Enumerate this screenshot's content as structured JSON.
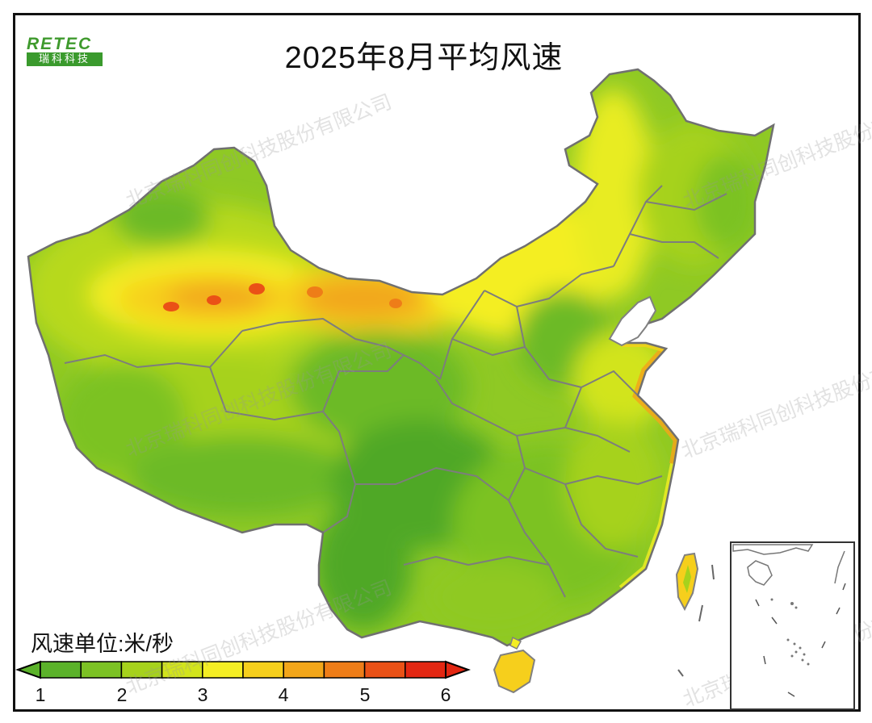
{
  "title": "2025年8月平均风速",
  "logo": {
    "top_text": "RETEC",
    "bottom_text": "瑞科科技"
  },
  "legend": {
    "unit_label": "风速单位:米/秒",
    "ticks": [
      "1",
      "2",
      "3",
      "4",
      "5",
      "6"
    ],
    "colors": [
      "#5bb22a",
      "#7cc224",
      "#a6d21c",
      "#d2e41c",
      "#f4ee24",
      "#f6cf1c",
      "#f2a61a",
      "#ee7d18",
      "#ea5116",
      "#e32712"
    ]
  },
  "watermark_text": "北京瑞科同创科技股份有限公司",
  "map": {
    "region": "China",
    "inset": "South China Sea islands",
    "color_zones": [
      {
        "zone": "Northern Xinjiang / Hexi / Inner Mongolia belt",
        "color": "#f2a61a",
        "speed": "4-5"
      },
      {
        "zone": "Inner Mongolia / Northeast plain",
        "color": "#f4ee24",
        "speed": "3-4"
      },
      {
        "zone": "Tibetan Plateau",
        "color": "#a6d21c",
        "speed": "2-3"
      },
      {
        "zone": "Sichuan Basin / Yunnan",
        "color": "#4fa828",
        "speed": "1-2"
      },
      {
        "zone": "Southeast coast / Hainan / Taiwan",
        "color": "#f6cf1c",
        "speed": "3-4"
      }
    ]
  }
}
